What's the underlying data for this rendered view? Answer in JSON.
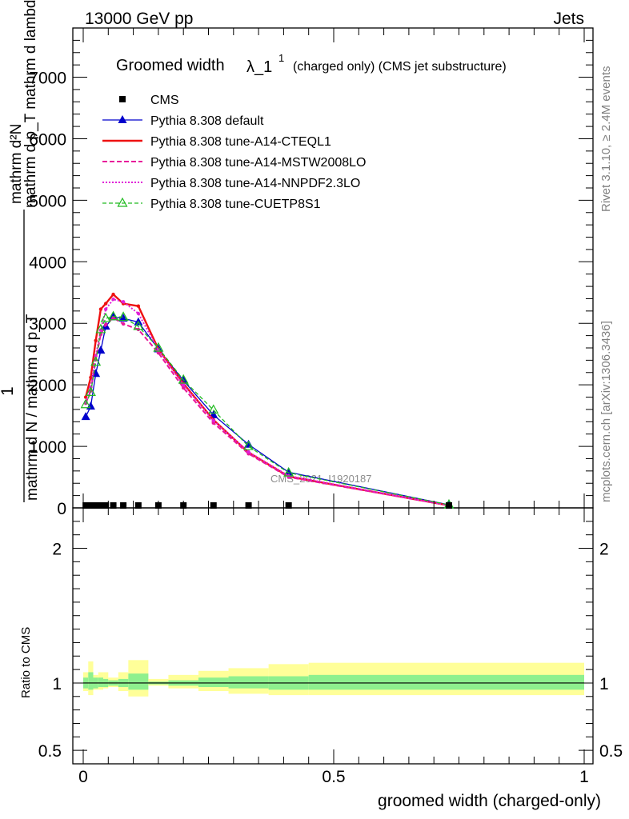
{
  "header": {
    "left": "13000 GeV pp",
    "right": "Jets"
  },
  "side_labels": {
    "rivet": "Rivet 3.1.10, ≥ 2.4M events",
    "mcplots": "mcplots.cern.ch [arXiv:1306.3436]"
  },
  "watermark": "CMS_2021_I1920187",
  "title": {
    "main": "Groomed width",
    "symbol": "λ_1",
    "sup": "1",
    "rest": "(charged only) (CMS jet substructure)"
  },
  "upper_ylabel": {
    "lead": "1",
    "denom": "mathrm d N / mathrm d p_T",
    "numer_top": "mathrm d²N",
    "numer_bottom": "mathrm d p_T mathrm d lambda"
  },
  "lower_ylabel": "Ratio to CMS",
  "xlabel": "groomed width (charged-only)",
  "legend": [
    {
      "label": "CMS",
      "color": "#000000"
    },
    {
      "label": "Pythia 8.308 default",
      "color": "#0000cc"
    },
    {
      "label": "Pythia 8.308 tune-A14-CTEQL1",
      "color": "#ee1111"
    },
    {
      "label": "Pythia 8.308 tune-A14-MSTW2008LO",
      "color": "#e8179a"
    },
    {
      "label": "Pythia 8.308 tune-A14-NNPDF2.3LO",
      "color": "#e020d8"
    },
    {
      "label": "Pythia 8.308 tune-CUETP8S1",
      "color": "#22bb22"
    }
  ],
  "chart_data": {
    "type": "line",
    "x": [
      0.005,
      0.015,
      0.025,
      0.035,
      0.045,
      0.06,
      0.08,
      0.11,
      0.15,
      0.2,
      0.26,
      0.33,
      0.41,
      0.73
    ],
    "series": [
      {
        "name": "CMS",
        "values": [
          0,
          0,
          0,
          0,
          0,
          0,
          0,
          0,
          0,
          0,
          0,
          0,
          0,
          0
        ]
      },
      {
        "name": "Pythia 8.308 default",
        "values": [
          1480,
          1650,
          2180,
          2560,
          2950,
          3100,
          3080,
          3020,
          2580,
          2070,
          1510,
          1030,
          580,
          50
        ]
      },
      {
        "name": "Pythia 8.308 tune-A14-CTEQL1",
        "values": [
          1800,
          2120,
          2720,
          3230,
          3320,
          3470,
          3320,
          3280,
          2580,
          2020,
          1430,
          900,
          510,
          40
        ]
      },
      {
        "name": "Pythia 8.308 tune-A14-MSTW2008LO",
        "values": [
          1700,
          1900,
          2410,
          2820,
          2980,
          3090,
          2990,
          2900,
          2520,
          1950,
          1380,
          880,
          500,
          40
        ]
      },
      {
        "name": "Pythia 8.308 tune-A14-NNPDF2.3LO",
        "values": [
          1720,
          1960,
          2470,
          2890,
          3230,
          3390,
          3350,
          3160,
          2570,
          2000,
          1420,
          910,
          520,
          40
        ]
      },
      {
        "name": "Pythia 8.308 tune-CUETP8S1",
        "values": [
          1680,
          1880,
          2370,
          2900,
          3080,
          3110,
          3100,
          2950,
          2600,
          2080,
          1590,
          1000,
          570,
          50
        ]
      }
    ],
    "upper": {
      "xlim": [
        0,
        1
      ],
      "ylim": [
        0,
        7800
      ],
      "yticks": [
        0,
        1000,
        2000,
        3000,
        4000,
        5000,
        6000,
        7000
      ],
      "ytick_labels": [
        "0",
        "1000",
        "2000",
        "3000",
        "4000",
        "5000",
        "6000",
        "7000"
      ]
    },
    "ratio": {
      "ylim": [
        0.4,
        2.3
      ],
      "yticks": [
        0.5,
        1,
        2
      ],
      "ytick_labels": [
        "0.5",
        "1",
        "2"
      ],
      "band_edges": [
        0,
        0.01,
        0.02,
        0.03,
        0.04,
        0.05,
        0.07,
        0.09,
        0.13,
        0.17,
        0.23,
        0.29,
        0.37,
        0.45,
        1.0
      ],
      "inner_band": [
        [
          0.96,
          1.04
        ],
        [
          0.95,
          1.08
        ],
        [
          0.96,
          1.04
        ],
        [
          0.97,
          1.04
        ],
        [
          0.97,
          1.03
        ],
        [
          0.98,
          1.02
        ],
        [
          0.97,
          1.03
        ],
        [
          0.95,
          1.07
        ],
        [
          0.99,
          1.01
        ],
        [
          0.98,
          1.02
        ],
        [
          0.97,
          1.04
        ],
        [
          0.96,
          1.05
        ],
        [
          0.95,
          1.05
        ],
        [
          0.95,
          1.06
        ]
      ],
      "outer_band": [
        [
          0.94,
          1.08
        ],
        [
          0.91,
          1.16
        ],
        [
          0.95,
          1.06
        ],
        [
          0.95,
          1.08
        ],
        [
          0.96,
          1.08
        ],
        [
          0.97,
          1.04
        ],
        [
          0.94,
          1.08
        ],
        [
          0.9,
          1.17
        ],
        [
          0.98,
          1.03
        ],
        [
          0.96,
          1.06
        ],
        [
          0.94,
          1.09
        ],
        [
          0.92,
          1.11
        ],
        [
          0.91,
          1.14
        ],
        [
          0.91,
          1.15
        ]
      ]
    },
    "xticks": [
      0,
      0.5,
      1
    ],
    "xtick_labels": [
      "0",
      "0.5",
      "1"
    ],
    "colors": {
      "band_inner": "#8ef08e",
      "band_outer": "#ffff99"
    }
  }
}
